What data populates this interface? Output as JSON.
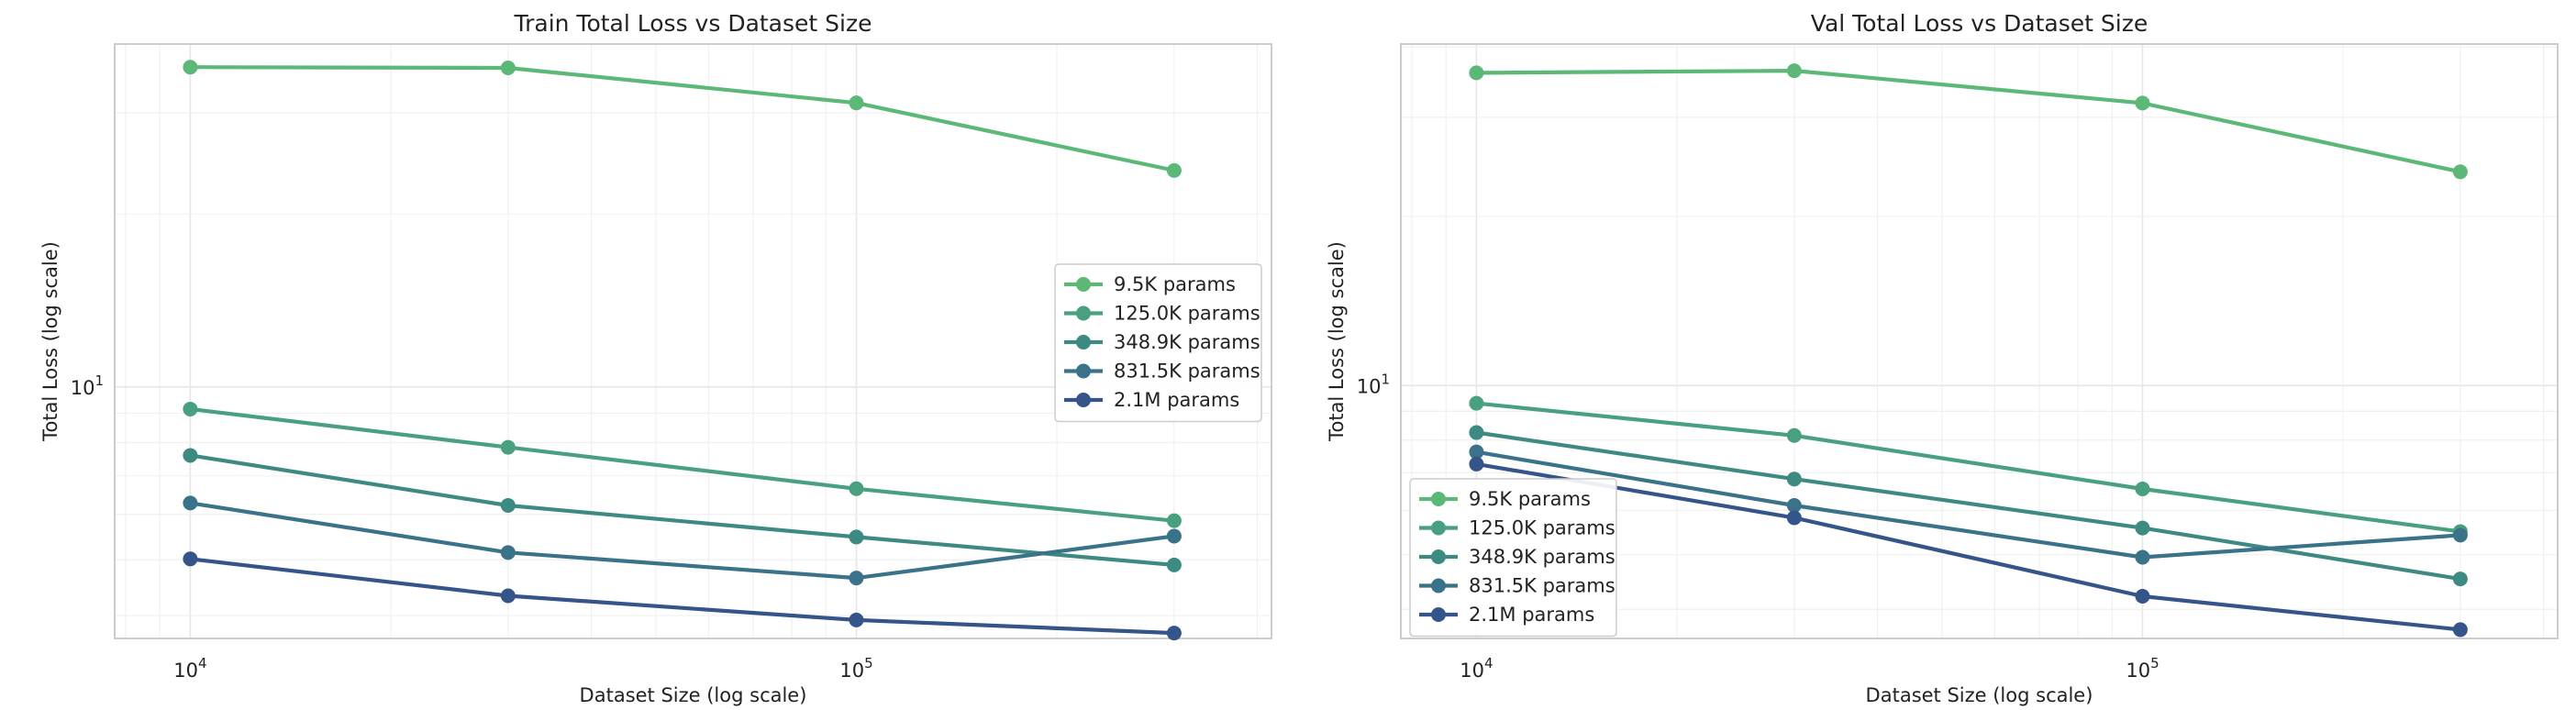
{
  "chart_data": [
    {
      "type": "line",
      "title": "Train Total Loss vs Dataset Size",
      "xlabel": "Dataset Size (log scale)",
      "ylabel": "Total Loss (log scale)",
      "xscale": "log",
      "yscale": "log",
      "xlim": [
        7700,
        420000
      ],
      "ylim": [
        3.65,
        39.5
      ],
      "xticks": [
        {
          "value": 10000,
          "base": "10",
          "exp": "4"
        },
        {
          "value": 100000,
          "base": "10",
          "exp": "5"
        }
      ],
      "yticks": [
        {
          "value": 10,
          "base": "10",
          "exp": "1"
        }
      ],
      "grid": true,
      "legend_position": "center-right",
      "x": [
        10000,
        30000,
        100000,
        300000
      ],
      "series": [
        {
          "name": "9.5K params",
          "color": "#5cb877",
          "values": [
            36.0,
            35.9,
            31.2,
            23.8
          ]
        },
        {
          "name": "125.0K params",
          "color": "#48a07f",
          "values": [
            9.15,
            7.85,
            6.65,
            5.85
          ]
        },
        {
          "name": "348.9K params",
          "color": "#3d8a83",
          "values": [
            7.6,
            6.22,
            5.48,
            4.9
          ]
        },
        {
          "name": "831.5K params",
          "color": "#3a7289",
          "values": [
            6.28,
            5.15,
            4.65,
            5.5
          ]
        },
        {
          "name": "2.1M params",
          "color": "#34548a",
          "values": [
            5.02,
            4.33,
            3.93,
            3.73
          ]
        }
      ]
    },
    {
      "type": "line",
      "title": "Val Total Loss vs Dataset Size",
      "xlabel": "Dataset Size (log scale)",
      "ylabel": "Total Loss (log scale)",
      "xscale": "log",
      "yscale": "log",
      "xlim": [
        7700,
        420000
      ],
      "ylim": [
        3.55,
        40.5
      ],
      "xticks": [
        {
          "value": 10000,
          "base": "10",
          "exp": "4"
        },
        {
          "value": 100000,
          "base": "10",
          "exp": "5"
        }
      ],
      "yticks": [
        {
          "value": 10,
          "base": "10",
          "exp": "1"
        }
      ],
      "grid": true,
      "legend_position": "lower-left",
      "x": [
        10000,
        30000,
        100000,
        300000
      ],
      "series": [
        {
          "name": "9.5K params",
          "color": "#5cb877",
          "values": [
            36.0,
            36.3,
            31.8,
            24.0
          ]
        },
        {
          "name": "125.0K params",
          "color": "#48a07f",
          "values": [
            9.3,
            8.15,
            6.55,
            5.5
          ]
        },
        {
          "name": "348.9K params",
          "color": "#3d8a83",
          "values": [
            8.25,
            6.82,
            5.58,
            4.53
          ]
        },
        {
          "name": "831.5K params",
          "color": "#3a7289",
          "values": [
            7.62,
            6.12,
            4.95,
            5.42
          ]
        },
        {
          "name": "2.1M params",
          "color": "#34548a",
          "values": [
            7.25,
            5.82,
            4.22,
            3.68
          ]
        }
      ]
    }
  ]
}
